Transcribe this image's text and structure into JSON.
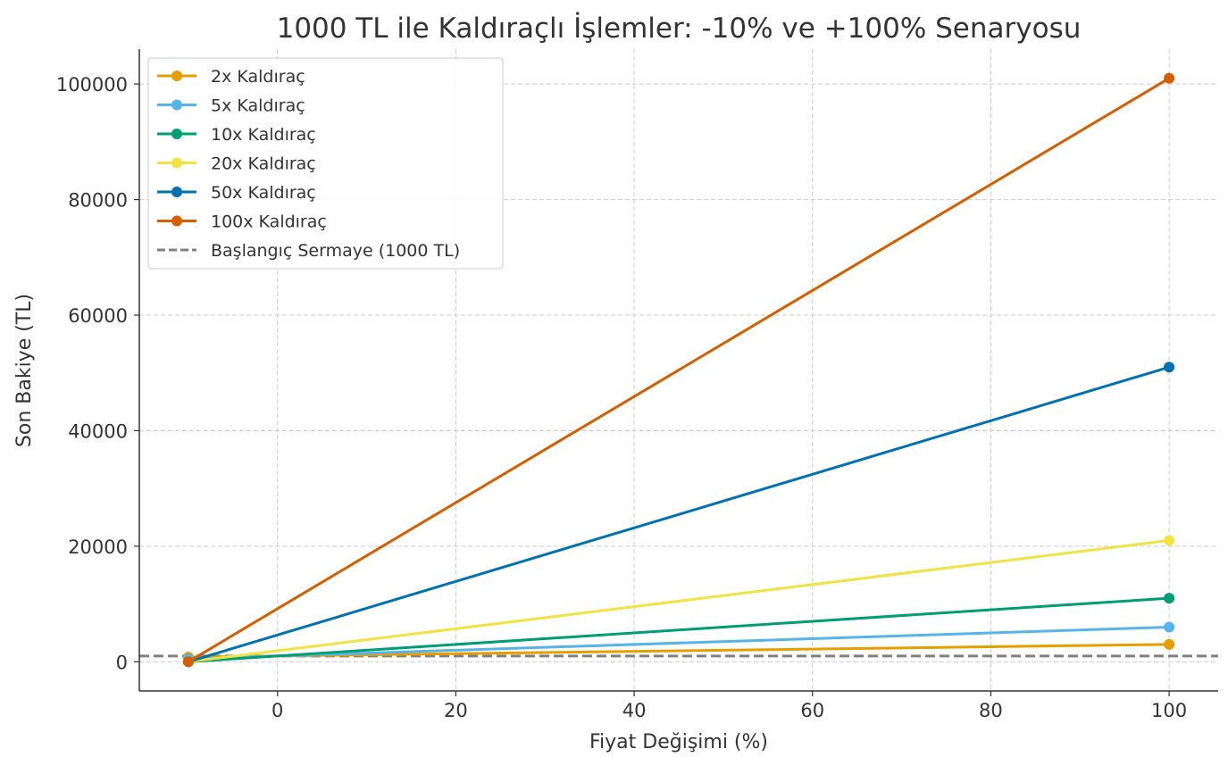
{
  "chart_data": {
    "type": "line",
    "title": "1000 TL ile Kaldıraçlı İşlemler: -10% ve +100% Senaryosu",
    "xlabel": "Fiyat Değişimi (%)",
    "ylabel": "Son Bakiye (TL)",
    "xlim": [
      -15.5,
      105.5
    ],
    "ylim": [
      -5050,
      106050
    ],
    "xticks": [
      0,
      20,
      40,
      60,
      80,
      100
    ],
    "yticks": [
      0,
      20000,
      40000,
      60000,
      80000,
      100000
    ],
    "grid": true,
    "legend_position": "top-left",
    "x": [
      -10,
      100
    ],
    "series": [
      {
        "name": "2x Kaldıraç",
        "color": "#E69F00",
        "values": [
          800,
          3000
        ]
      },
      {
        "name": "5x Kaldıraç",
        "color": "#56B4E9",
        "values": [
          500,
          6000
        ]
      },
      {
        "name": "10x Kaldıraç",
        "color": "#009E73",
        "values": [
          0,
          11000
        ]
      },
      {
        "name": "20x Kaldıraç",
        "color": "#F0E442",
        "values": [
          0,
          21000
        ]
      },
      {
        "name": "50x Kaldıraç",
        "color": "#0072B2",
        "values": [
          0,
          51000
        ]
      },
      {
        "name": "100x Kaldıraç",
        "color": "#D55E00",
        "values": [
          0,
          101000
        ]
      }
    ],
    "reference_line": {
      "name": "Başlangıç Sermaye (1000 TL)",
      "value": 1000,
      "color": "#808080",
      "style": "dashed"
    }
  }
}
